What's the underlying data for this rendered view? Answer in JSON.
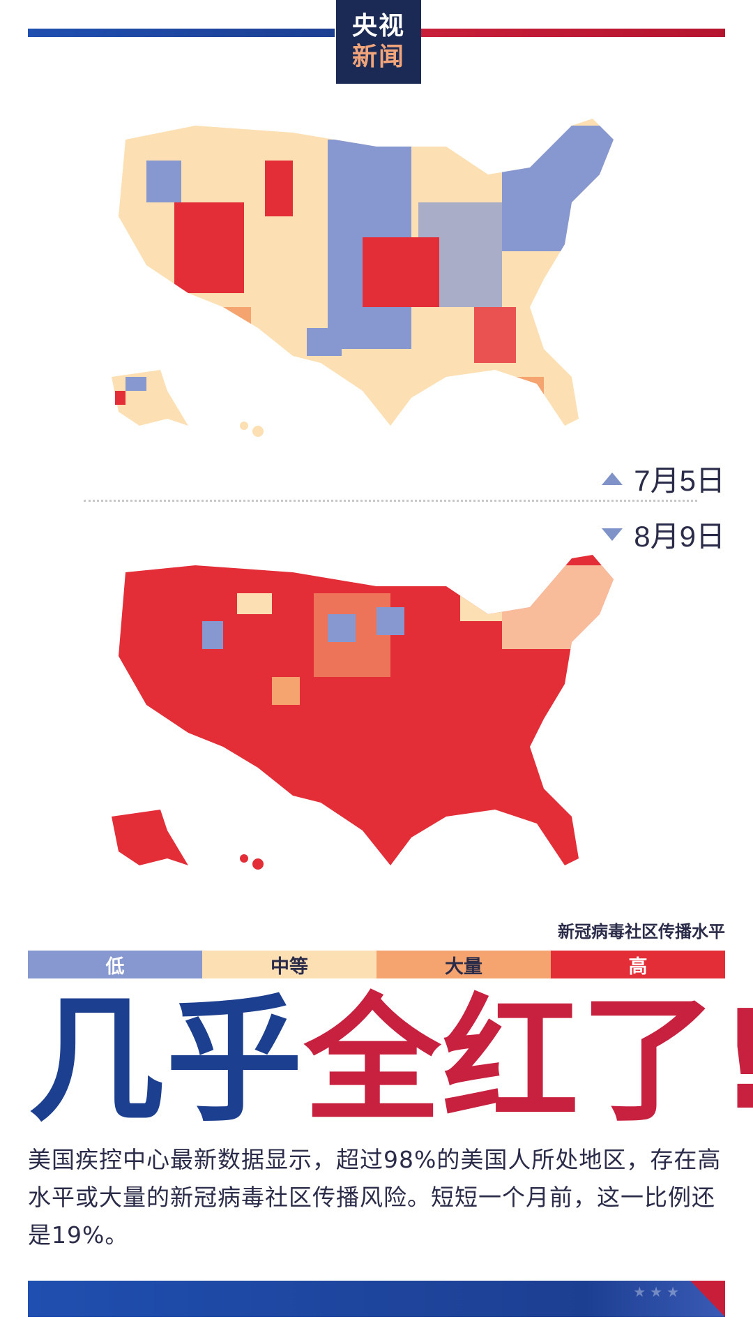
{
  "logo": {
    "line1": "央视",
    "line2": "新闻"
  },
  "maps": [
    {
      "date": "7月5日",
      "marker": "triangle-up-icon"
    },
    {
      "date": "8月9日",
      "marker": "triangle-down-icon"
    }
  ],
  "legend": {
    "title": "新冠病毒社区传播水平",
    "levels": [
      {
        "label": "低",
        "color": "#8797cf"
      },
      {
        "label": "中等",
        "color": "#fce0b4"
      },
      {
        "label": "大量",
        "color": "#f5a46f"
      },
      {
        "label": "高",
        "color": "#e32e38"
      }
    ]
  },
  "headline": {
    "part1": "几乎",
    "part2": "全红了!"
  },
  "body": "美国疾控中心最新数据显示，超过98%的美国人所处地区，存在高水平或大量的新冠病毒社区传播风险。短短一个月前，这一比例还是19%。",
  "colors": {
    "blue": "#1d3f8f",
    "red": "#c8203f",
    "low": "#8797cf",
    "moderate": "#fce0b4",
    "substantial": "#f5a46f",
    "high": "#e32e38"
  }
}
